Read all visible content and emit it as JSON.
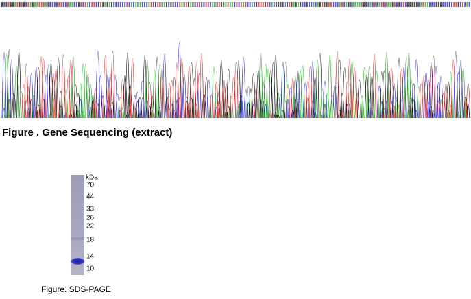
{
  "sequencing": {
    "caption": "Figure . Gene Sequencing (extract)"
  },
  "sds_page": {
    "unit": "kDa",
    "markers": [
      70,
      44,
      33,
      26,
      22,
      18,
      14,
      10
    ],
    "caption": "Figure. SDS-PAGE"
  }
}
